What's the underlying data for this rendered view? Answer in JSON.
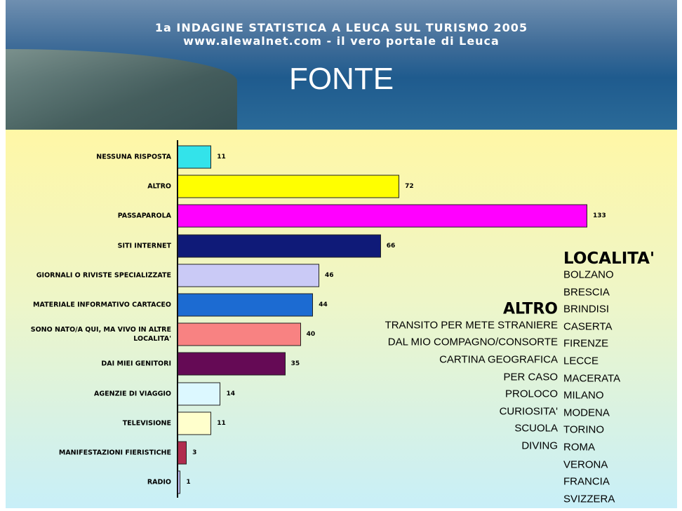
{
  "header": {
    "line1": "1a INDAGINE STATISTICA A LEUCA SUL TURISMO 2005",
    "line2": "www.alewalnet.com - il vero portale di Leuca"
  },
  "chart_data": {
    "type": "barh",
    "title": "FONTE",
    "categories": [
      "NESSUNA RISPOSTA",
      "ALTRO",
      "PASSAPAROLA",
      "SITI INTERNET",
      "GIORNALI O RIVISTE SPECIALIZZATE",
      "MATERIALE INFORMATIVO CARTACEO",
      "SONO NATO/A QUI, MA VIVO IN ALTRE LOCALITA'",
      "DAI MIEI GENITORI",
      "AGENZIE DI VIAGGIO",
      "TELEVISIONE",
      "MANIFESTAZIONI FIERISTICHE",
      "RADIO"
    ],
    "values": [
      11,
      72,
      133,
      66,
      46,
      44,
      40,
      35,
      14,
      11,
      3,
      1
    ],
    "colors": [
      "#33e3ea",
      "#ffff00",
      "#ff00ff",
      "#0f1a78",
      "#cacaf6",
      "#1c6bd2",
      "#f88282",
      "#650a55",
      "#dcf8ff",
      "#ffffcc",
      "#b02c4e",
      "#c4c4ff"
    ]
  },
  "altro": {
    "title": "ALTRO",
    "items": [
      "TRANSITO PER METE STRANIERE",
      "DAL MIO COMPAGNO/CONSORTE",
      "CARTINA GEOGRAFICA",
      "PER CASO",
      "PROLOCO",
      "CURIOSITA'",
      "SCUOLA",
      "DIVING"
    ]
  },
  "localita": {
    "title": "LOCALITA'",
    "items": [
      "BOLZANO",
      "BRESCIA",
      "BRINDISI",
      "CASERTA",
      "FIRENZE",
      "LECCE",
      "MACERATA",
      "MILANO",
      "MODENA",
      "TORINO",
      "ROMA",
      "VERONA",
      "FRANCIA",
      "SVIZZERA"
    ]
  }
}
